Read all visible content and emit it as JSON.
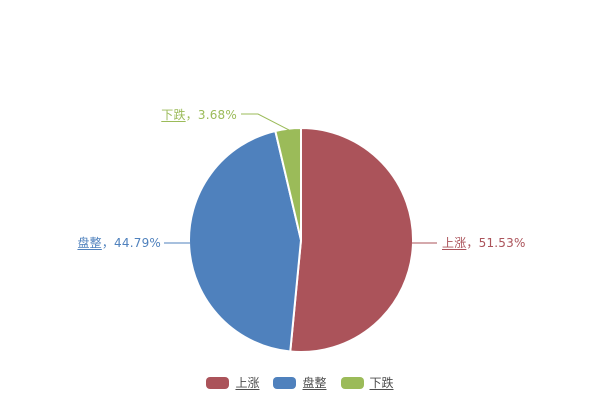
{
  "page": {
    "background": "#FFFFFF"
  },
  "chart_data": {
    "type": "pie",
    "title": "",
    "categories": [
      "上涨",
      "盘整",
      "下跌"
    ],
    "values": [
      51.53,
      44.79,
      3.68
    ],
    "unit": "%",
    "start_angle": "top",
    "direction": "clockwise",
    "legend_position": "bottom",
    "legend": [
      "上涨",
      "盘整",
      "下跌"
    ],
    "slices": [
      {
        "name": "上涨",
        "value": 51.53,
        "label": "上涨，51.53%",
        "label_rest": "，51.53%",
        "color": "#AB535A"
      },
      {
        "name": "盘整",
        "value": 44.79,
        "label": "盘整，44.79%",
        "label_rest": "，44.79%",
        "color": "#4F81BD"
      },
      {
        "name": "下跌",
        "value": 3.68,
        "label": "下跌，3.68%",
        "label_rest": "，3.68%",
        "color": "#9BBB59"
      }
    ]
  }
}
